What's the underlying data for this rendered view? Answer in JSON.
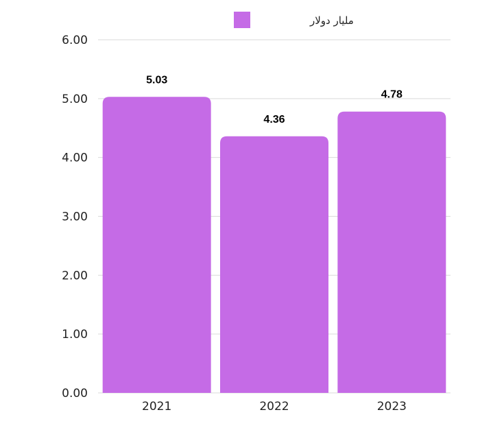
{
  "chart_data": {
    "type": "bar",
    "categories": [
      "2021",
      "2022",
      "2023"
    ],
    "series": [
      {
        "name": "مليار دولار",
        "values": [
          5.03,
          4.36,
          4.78
        ],
        "color": "#c56be6"
      }
    ],
    "data_labels": [
      "5.03",
      "4.36",
      "4.78"
    ],
    "y_ticks": [
      "0.00",
      "1.00",
      "2.00",
      "3.00",
      "4.00",
      "5.00",
      "6.00"
    ],
    "ylim": [
      0,
      6
    ],
    "grid": true,
    "legend_position": "top-center",
    "gridline_color": "#d9d9d9"
  }
}
